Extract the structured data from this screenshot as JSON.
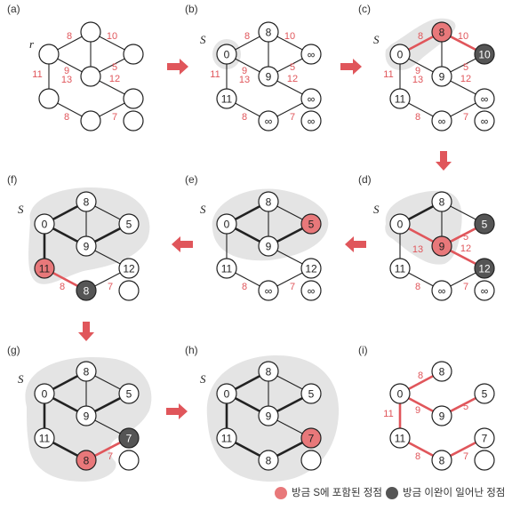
{
  "colors": {
    "accent": "#e0565b",
    "node_in_s": "#e8787a",
    "node_relaxed": "#555555",
    "region": "#e4e4e4",
    "edge": "#222222"
  },
  "markers": {
    "set_label": "S",
    "root_label": "r"
  },
  "legend": {
    "in_s": "방금 S에 포함된 정점",
    "relaxed": "방금 이완이 일어난 정점"
  },
  "panels": [
    {
      "id": "a",
      "label": "(a)",
      "show_s": false,
      "show_root": true,
      "values": [
        "",
        "",
        "",
        "",
        "",
        "",
        "",
        ""
      ],
      "states": [
        "",
        "",
        "",
        "",
        "",
        "",
        "",
        ""
      ],
      "tree_edges": [],
      "red_edges": [],
      "weights": [
        "8",
        "10",
        "11",
        "9",
        "5",
        "13",
        "12",
        "8",
        "7"
      ]
    },
    {
      "id": "b",
      "label": "(b)",
      "show_s": true,
      "show_root": false,
      "values": [
        "0",
        "8",
        "∞",
        "9",
        "11",
        "∞",
        "∞",
        "∞"
      ],
      "states": [
        "",
        "",
        "",
        "",
        "",
        "",
        "",
        ""
      ],
      "tree_edges": [],
      "red_edges": [],
      "weights": [
        "8",
        "10",
        "11",
        "9",
        "5",
        "13",
        "12",
        "8",
        "7"
      ]
    },
    {
      "id": "c",
      "label": "(c)",
      "show_s": true,
      "show_root": false,
      "values": [
        "0",
        "8",
        "10",
        "9",
        "11",
        "∞",
        "∞",
        "∞"
      ],
      "states": [
        "",
        "in",
        "relaxed",
        "",
        "",
        "",
        "",
        ""
      ],
      "tree_edges": [
        "0-1"
      ],
      "red_edges": [
        "0-1",
        "1-2"
      ],
      "weights": [
        "8",
        "10",
        "11",
        "9",
        "5",
        "13",
        "12",
        "8",
        "7"
      ]
    },
    {
      "id": "d",
      "label": "(d)",
      "show_s": true,
      "show_root": false,
      "values": [
        "0",
        "8",
        "5",
        "9",
        "11",
        "12",
        "∞",
        "∞"
      ],
      "states": [
        "",
        "",
        "relaxed",
        "in",
        "",
        "relaxed",
        "",
        ""
      ],
      "tree_edges": [
        "0-1",
        "0-3"
      ],
      "red_edges": [
        "0-3",
        "3-2",
        "3-5",
        "3-4"
      ],
      "weights": [
        "",
        "",
        "",
        "",
        "5",
        "13",
        "12",
        "8",
        "7"
      ]
    },
    {
      "id": "e",
      "label": "(e)",
      "show_s": true,
      "show_root": false,
      "values": [
        "0",
        "8",
        "5",
        "9",
        "11",
        "12",
        "∞",
        "∞"
      ],
      "states": [
        "",
        "",
        "in",
        "",
        "",
        "",
        "",
        ""
      ],
      "tree_edges": [
        "0-1",
        "0-3",
        "3-2"
      ],
      "red_edges": [],
      "weights": [
        "",
        "",
        "",
        "",
        "",
        "",
        "",
        "8",
        "7"
      ]
    },
    {
      "id": "f",
      "label": "(f)",
      "show_s": true,
      "show_root": false,
      "values": [
        "0",
        "8",
        "5",
        "9",
        "11",
        "12",
        "8",
        ""
      ],
      "states": [
        "",
        "",
        "",
        "",
        "in",
        "",
        "relaxed",
        ""
      ],
      "tree_edges": [
        "0-1",
        "0-3",
        "3-2",
        "0-4"
      ],
      "red_edges": [
        "4-6"
      ],
      "weights": [
        "",
        "",
        "",
        "",
        "",
        "",
        "",
        "8",
        "7"
      ]
    },
    {
      "id": "g",
      "label": "(g)",
      "show_s": true,
      "show_root": false,
      "values": [
        "0",
        "8",
        "5",
        "9",
        "11",
        "7",
        "8",
        ""
      ],
      "states": [
        "",
        "",
        "",
        "",
        "",
        "relaxed",
        "in",
        ""
      ],
      "tree_edges": [
        "0-1",
        "0-3",
        "3-2",
        "0-4",
        "4-6"
      ],
      "red_edges": [
        "6-5"
      ],
      "weights": [
        "",
        "",
        "",
        "",
        "",
        "",
        "",
        "",
        "7"
      ]
    },
    {
      "id": "h",
      "label": "(h)",
      "show_s": true,
      "show_root": false,
      "values": [
        "0",
        "8",
        "5",
        "9",
        "11",
        "7",
        "8",
        ""
      ],
      "states": [
        "",
        "",
        "",
        "",
        "",
        "in",
        "",
        ""
      ],
      "tree_edges": [
        "0-1",
        "0-3",
        "3-2",
        "0-4",
        "4-6",
        "6-5"
      ],
      "red_edges": [],
      "weights": [
        "",
        "",
        "",
        "",
        "",
        "",
        "",
        "",
        ""
      ]
    },
    {
      "id": "i",
      "label": "(i)",
      "show_s": false,
      "show_root": false,
      "values": [
        "0",
        "8",
        "5",
        "9",
        "11",
        "7",
        "8",
        ""
      ],
      "states": [
        "",
        "",
        "",
        "",
        "",
        "",
        "",
        ""
      ],
      "tree_edges": [],
      "red_edges": [
        "0-1",
        "0-3",
        "3-2",
        "0-4",
        "4-6",
        "6-5"
      ],
      "weights": [
        "8",
        "",
        "11",
        "9",
        "5",
        "",
        "",
        "8",
        "7"
      ]
    }
  ]
}
